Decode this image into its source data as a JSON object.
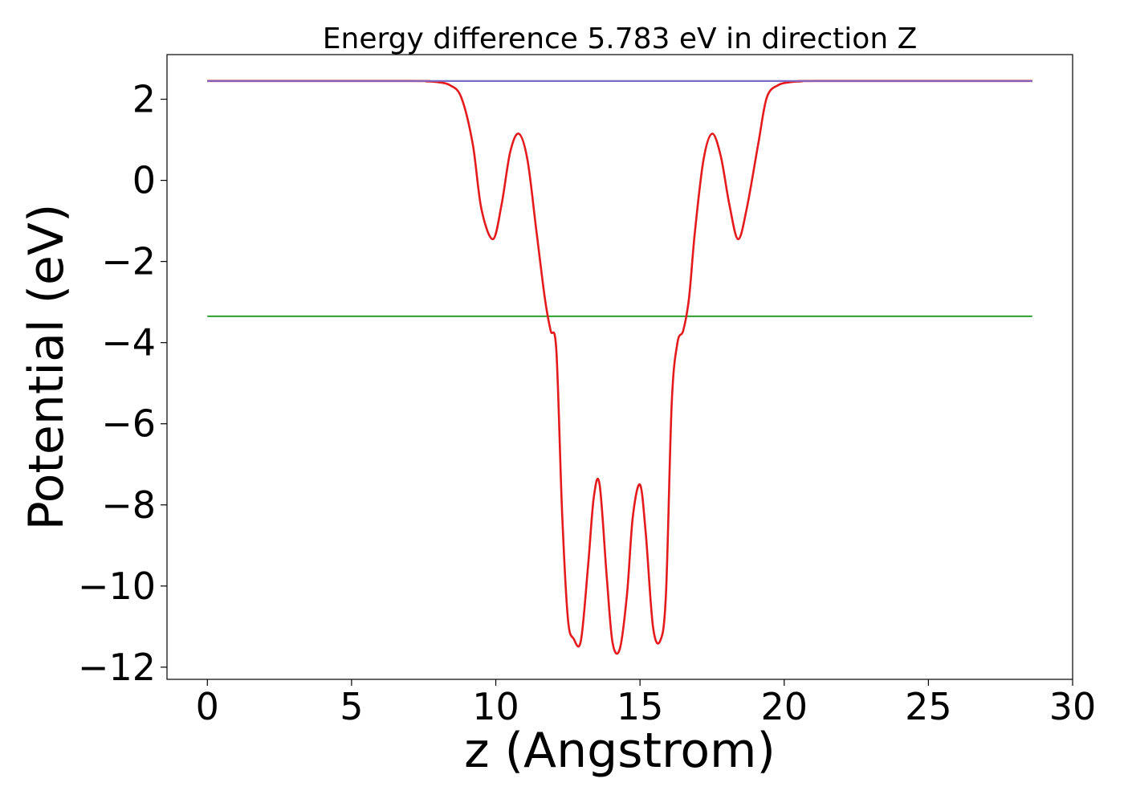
{
  "chart_data": {
    "type": "line",
    "title": "Energy difference 5.783 eV in direction Z",
    "xlabel": "z (Angstrom)",
    "ylabel": "Potential (eV)",
    "xlim": [
      -1.4,
      30
    ],
    "ylim": [
      -12.3,
      3.1
    ],
    "xticks": [
      0,
      5,
      10,
      15,
      20,
      25,
      30
    ],
    "yticks": [
      2,
      0,
      -2,
      -4,
      -6,
      -8,
      -10,
      -12
    ],
    "xtick_labels": [
      "0",
      "5",
      "10",
      "15",
      "20",
      "25",
      "30"
    ],
    "ytick_labels": [
      "2",
      "0",
      "−2",
      "−4",
      "−6",
      "−8",
      "−10",
      "−12"
    ],
    "grid": false,
    "series": [
      {
        "color": "#1f77b4",
        "x": [
          0,
          28.6
        ],
        "y": [
          2.45,
          2.45
        ]
      },
      {
        "color": "#2ca02c",
        "x": [
          0,
          28.6
        ],
        "y": [
          -3.35,
          -3.35
        ]
      },
      {
        "color": "#e41a1c",
        "x": [
          0,
          7.0,
          7.6,
          8.0,
          8.4,
          8.8,
          9.2,
          9.5,
          9.9,
          10.2,
          10.5,
          10.8,
          11.1,
          11.4,
          11.7,
          11.9,
          12.1,
          12.3,
          12.5,
          12.7,
          12.95,
          13.2,
          13.4,
          13.6,
          13.85,
          14.05,
          14.3,
          14.55,
          14.75,
          15.0,
          15.2,
          15.45,
          15.7,
          15.9,
          16.1,
          16.3,
          16.5,
          16.7,
          16.9,
          17.2,
          17.5,
          17.8,
          18.1,
          18.4,
          18.7,
          19.1,
          19.4,
          19.8,
          20.2,
          20.6,
          21.2,
          28.6
        ],
        "y": [
          2.45,
          2.45,
          2.44,
          2.42,
          2.35,
          2.05,
          0.9,
          -0.7,
          -1.45,
          -0.6,
          0.7,
          1.15,
          0.5,
          -1.2,
          -2.9,
          -3.7,
          -4.2,
          -8.2,
          -10.8,
          -11.3,
          -11.35,
          -9.5,
          -7.8,
          -7.5,
          -9.8,
          -11.4,
          -11.55,
          -10.2,
          -8.3,
          -7.5,
          -8.7,
          -11.0,
          -11.35,
          -10.2,
          -5.5,
          -4.0,
          -3.7,
          -2.9,
          -1.3,
          0.5,
          1.15,
          0.6,
          -0.6,
          -1.45,
          -0.7,
          0.9,
          2.05,
          2.35,
          2.42,
          2.44,
          2.45,
          2.45
        ]
      },
      {
        "color": "#7b68c8",
        "x": [
          0,
          8.2,
          20.3,
          28.6
        ],
        "y": [
          2.45,
          2.45,
          2.45,
          2.45
        ]
      }
    ]
  }
}
